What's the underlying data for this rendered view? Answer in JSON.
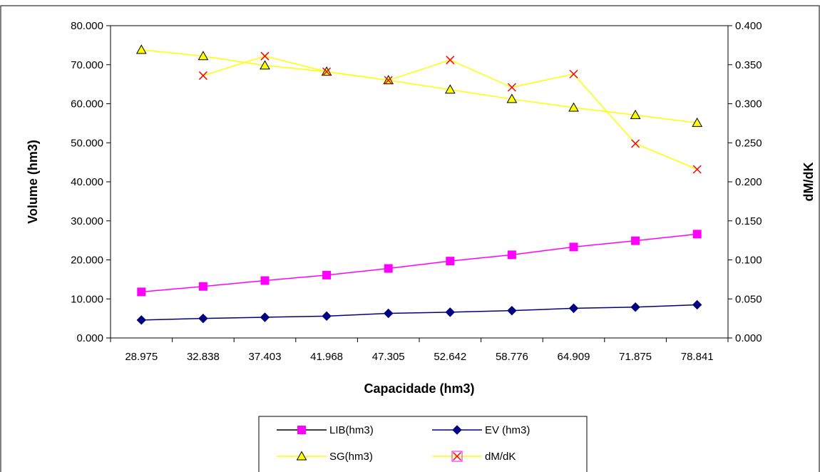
{
  "chart_data": {
    "type": "line",
    "title": "",
    "xlabel": "Capacidade (hm3)",
    "ylabel": "Volume (hm3)",
    "y2label": "dM/dK",
    "categories": [
      "28.975",
      "32.838",
      "37.403",
      "41.968",
      "47.305",
      "52.642",
      "58.776",
      "64.909",
      "71.875",
      "78.841"
    ],
    "ylim": [
      0,
      80
    ],
    "y2lim": [
      0,
      0.4
    ],
    "yticks": [
      "0.000",
      "10.000",
      "20.000",
      "30.000",
      "40.000",
      "50.000",
      "60.000",
      "70.000",
      "80.000"
    ],
    "y2ticks": [
      "0.000",
      "0.050",
      "0.100",
      "0.150",
      "0.200",
      "0.250",
      "0.300",
      "0.350",
      "0.400"
    ],
    "grid": false,
    "legend_position": "bottom",
    "series": [
      {
        "name": "LIB(hm3)",
        "axis": "left",
        "color": "#ff00ff",
        "marker": "square",
        "values": [
          11.8,
          13.2,
          14.7,
          16.1,
          17.8,
          19.7,
          21.3,
          23.3,
          24.9,
          26.6
        ]
      },
      {
        "name": "EV (hm3)",
        "axis": "left",
        "color": "#000080",
        "marker": "diamond",
        "values": [
          4.6,
          5.0,
          5.3,
          5.6,
          6.3,
          6.6,
          7.0,
          7.6,
          7.9,
          8.5
        ]
      },
      {
        "name": "SG(hm3)",
        "axis": "left",
        "color": "#ffff00",
        "marker": "triangle",
        "values": [
          73.8,
          72.2,
          69.8,
          68.2,
          66.0,
          63.6,
          61.2,
          59.0,
          57.1,
          55.1
        ]
      },
      {
        "name": "dM/dK",
        "axis": "right",
        "color": "#ff0000",
        "line_color": "#ffff00",
        "marker": "x",
        "values": [
          null,
          0.336,
          0.361,
          0.341,
          0.33,
          0.356,
          0.321,
          0.338,
          0.249,
          0.216
        ]
      }
    ]
  }
}
